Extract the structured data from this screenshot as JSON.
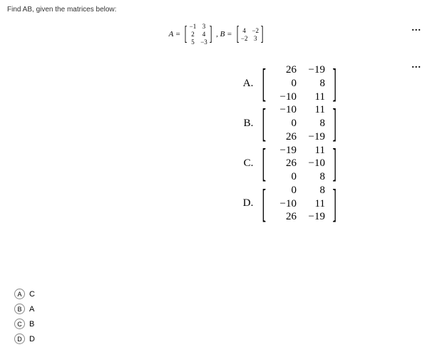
{
  "question": "Find AB, given the matrices below:",
  "dots": "...",
  "def": {
    "lblA": "A =",
    "A": [
      "−1",
      "3",
      "2",
      "4",
      "5",
      "−3"
    ],
    "lblB": ", B =",
    "B": [
      "4",
      "−2",
      "−2",
      "3"
    ]
  },
  "answers": [
    {
      "letter": "A.",
      "m": [
        "26",
        "−19",
        "0",
        "8",
        "−10",
        "11"
      ]
    },
    {
      "letter": "B.",
      "m": [
        "−10",
        "11",
        "0",
        "8",
        "26",
        "−19"
      ]
    },
    {
      "letter": "C.",
      "m": [
        "−19",
        "11",
        "26",
        "−10",
        "0",
        "8"
      ]
    },
    {
      "letter": "D.",
      "m": [
        "0",
        "8",
        "−10",
        "11",
        "26",
        "−19"
      ]
    }
  ],
  "options": [
    {
      "circle": "A",
      "label": "C"
    },
    {
      "circle": "B",
      "label": "A"
    },
    {
      "circle": "C",
      "label": "B"
    },
    {
      "circle": "D",
      "label": "D"
    }
  ]
}
